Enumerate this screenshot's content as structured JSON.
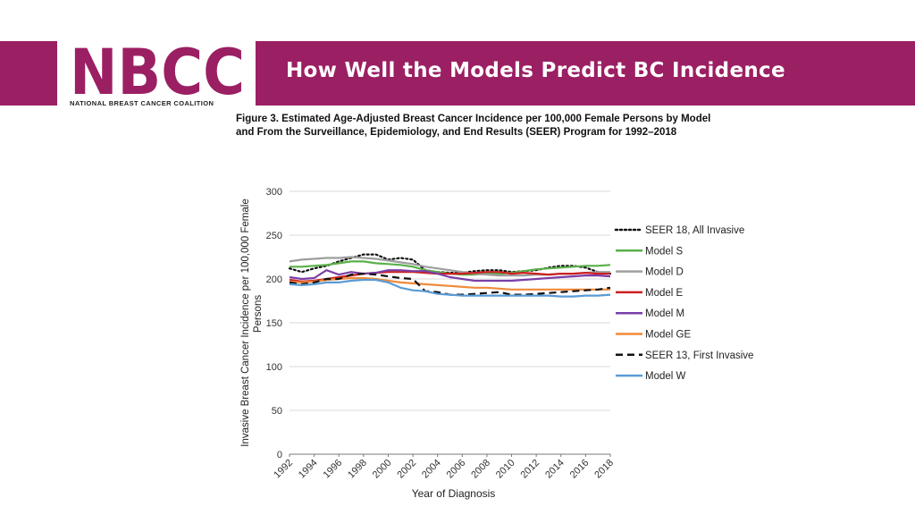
{
  "header": {
    "logo_text": "NBCC",
    "logo_tagline": "NATIONAL BREAST CANCER COALITION",
    "slide_title": "How Well the Models Predict BC Incidence",
    "banner_color": "#9b1f63"
  },
  "figure": {
    "caption_line1": "Figure 3. Estimated Age-Adjusted Breast Cancer Incidence per 100,000 Female Persons by Model",
    "caption_line2": "and From the Surveillance, Epidemiology, and End Results (SEER) Program for 1992–2018"
  },
  "chart_data": {
    "type": "line",
    "title": "",
    "xlabel": "Year of Diagnosis",
    "ylabel_line1": "Invasive Breast Cancer Incidence per 100,000 Female",
    "ylabel_line2": "Persons",
    "ylim": [
      0,
      300
    ],
    "yticks": [
      0,
      50,
      100,
      150,
      200,
      250,
      300
    ],
    "x": [
      1992,
      1993,
      1994,
      1995,
      1996,
      1997,
      1998,
      1999,
      2000,
      2001,
      2002,
      2003,
      2004,
      2005,
      2006,
      2007,
      2008,
      2009,
      2010,
      2011,
      2012,
      2013,
      2014,
      2015,
      2016,
      2017,
      2018
    ],
    "xtick_labels": [
      "1992",
      "1994",
      "1996",
      "1998",
      "2000",
      "2002",
      "2004",
      "2006",
      "2008",
      "2010",
      "2012",
      "2014",
      "2016",
      "2018"
    ],
    "legend_position": "right",
    "series": [
      {
        "name": "SEER 18, All Invasive",
        "color": "#111111",
        "style": "dotted",
        "values": [
          212,
          208,
          212,
          215,
          220,
          224,
          228,
          228,
          222,
          224,
          222,
          210,
          208,
          207,
          207,
          209,
          210,
          210,
          208,
          209,
          210,
          213,
          215,
          215,
          213,
          208,
          206
        ]
      },
      {
        "name": "Model S",
        "color": "#5ab04a",
        "style": "solid",
        "values": [
          214,
          214,
          215,
          216,
          218,
          220,
          220,
          218,
          217,
          216,
          214,
          210,
          208,
          206,
          205,
          205,
          206,
          206,
          207,
          209,
          211,
          212,
          213,
          214,
          215,
          215,
          216
        ]
      },
      {
        "name": "Model D",
        "color": "#9e9e9e",
        "style": "solid",
        "values": [
          220,
          222,
          223,
          224,
          224,
          225,
          224,
          223,
          221,
          219,
          217,
          214,
          212,
          210,
          208,
          206,
          205,
          204,
          204,
          204,
          205,
          205,
          206,
          206,
          207,
          208,
          208
        ]
      },
      {
        "name": "Model E",
        "color": "#cc1f1f",
        "style": "solid",
        "values": [
          199,
          197,
          198,
          200,
          202,
          204,
          206,
          207,
          208,
          208,
          208,
          207,
          206,
          206,
          206,
          207,
          208,
          208,
          206,
          207,
          206,
          205,
          206,
          206,
          207,
          206,
          206
        ]
      },
      {
        "name": "Model M",
        "color": "#7b3fa8",
        "style": "solid",
        "values": [
          202,
          200,
          201,
          210,
          205,
          208,
          206,
          207,
          210,
          210,
          209,
          209,
          206,
          202,
          200,
          198,
          198,
          198,
          198,
          199,
          200,
          201,
          202,
          203,
          204,
          204,
          203
        ]
      },
      {
        "name": "Model GE",
        "color": "#ef8a3a",
        "style": "solid",
        "values": [
          197,
          196,
          197,
          199,
          200,
          201,
          201,
          200,
          198,
          196,
          195,
          194,
          193,
          192,
          191,
          190,
          190,
          189,
          188,
          188,
          188,
          188,
          188,
          188,
          188,
          188,
          188
        ]
      },
      {
        "name": "SEER 13, First Invasive",
        "color": "#111111",
        "style": "dashed",
        "values": [
          196,
          194,
          196,
          200,
          200,
          205,
          206,
          205,
          203,
          201,
          200,
          186,
          185,
          182,
          182,
          183,
          184,
          185,
          182,
          182,
          183,
          184,
          185,
          186,
          187,
          188,
          190
        ]
      },
      {
        "name": "Model W",
        "color": "#5a9bd5",
        "style": "solid",
        "values": [
          194,
          193,
          194,
          196,
          196,
          198,
          199,
          199,
          196,
          190,
          187,
          186,
          183,
          182,
          181,
          181,
          181,
          181,
          181,
          181,
          181,
          181,
          180,
          180,
          181,
          181,
          182
        ]
      }
    ]
  }
}
